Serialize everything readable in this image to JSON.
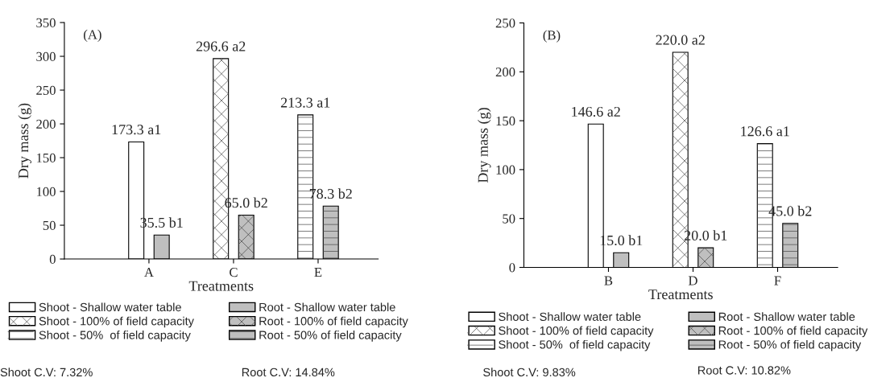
{
  "chart_data": [
    {
      "type": "bar",
      "title": "(A)",
      "xlabel": "Treatments",
      "ylabel": "Dry mass (g)",
      "categories": [
        "A",
        "C",
        "E"
      ],
      "ylim": [
        0,
        350
      ],
      "yticks": [
        0,
        50,
        100,
        150,
        200,
        250,
        300,
        350
      ],
      "legend": "bottom",
      "grid": false,
      "series": [
        {
          "name": "Shoot - Shallow water table",
          "color": "#ffffff",
          "values": [
            173.3,
            null,
            null
          ],
          "value_labels": [
            "173.3 a1",
            null,
            null
          ]
        },
        {
          "name": "Root - Shallow water table",
          "color": "#bfbfbf",
          "values": [
            35.5,
            null,
            null
          ],
          "value_labels": [
            "35.5 b1",
            null,
            null
          ]
        },
        {
          "name": "Shoot - 100% of field capacity",
          "color": "#ffffff",
          "values": [
            null,
            296.6,
            null
          ],
          "value_labels": [
            null,
            "296.6 a2",
            null
          ]
        },
        {
          "name": "Root - 100% of field capacity",
          "color": "#bfbfbf",
          "values": [
            null,
            65.0,
            null
          ],
          "value_labels": [
            null,
            "65.0 b2",
            null
          ]
        },
        {
          "name": "Shoot - 50%  of field capacity",
          "color": "#ffffff",
          "values": [
            null,
            null,
            213.3
          ],
          "value_labels": [
            null,
            null,
            "213.3 a1"
          ]
        },
        {
          "name": "Root - 50% of field capacity",
          "color": "#bfbfbf",
          "values": [
            null,
            null,
            78.3
          ],
          "value_labels": [
            null,
            null,
            "78.3 b2"
          ]
        }
      ],
      "annotations": [
        "Shoot C.V: 7.32%",
        "Root C.V: 14.84%"
      ]
    },
    {
      "type": "bar",
      "title": "(B)",
      "xlabel": "Treatments",
      "ylabel": "Dry mass (g)",
      "categories": [
        "B",
        "D",
        "F"
      ],
      "ylim": [
        0,
        250
      ],
      "yticks": [
        0,
        50,
        100,
        150,
        200,
        250
      ],
      "legend": "bottom",
      "grid": false,
      "series": [
        {
          "name": "Shoot - Shallow water table",
          "color": "#ffffff",
          "values": [
            146.6,
            null,
            null
          ],
          "value_labels": [
            "146.6 a2",
            null,
            null
          ]
        },
        {
          "name": "Root - Shallow water table",
          "color": "#bfbfbf",
          "values": [
            15.0,
            null,
            null
          ],
          "value_labels": [
            "15.0 b1",
            null,
            null
          ]
        },
        {
          "name": "Shoot - 100% of field capacity",
          "color": "#ffffff",
          "values": [
            null,
            220.0,
            null
          ],
          "value_labels": [
            null,
            "220.0 a2",
            null
          ]
        },
        {
          "name": "Root - 100% of field capacity",
          "color": "#bfbfbf",
          "values": [
            null,
            20.0,
            null
          ],
          "value_labels": [
            null,
            "20.0 b1",
            null
          ]
        },
        {
          "name": "Shoot - 50%  of field capacity",
          "color": "#ffffff",
          "values": [
            null,
            null,
            126.6
          ],
          "value_labels": [
            null,
            null,
            "126.6 a1"
          ]
        },
        {
          "name": "Root - 50% of field capacity",
          "color": "#bfbfbf",
          "values": [
            null,
            null,
            45.0
          ],
          "value_labels": [
            null,
            null,
            "45.0 b2"
          ]
        }
      ],
      "annotations": [
        "Shoot C.V: 9.83%",
        "Root C.V: 10.82%"
      ]
    }
  ]
}
